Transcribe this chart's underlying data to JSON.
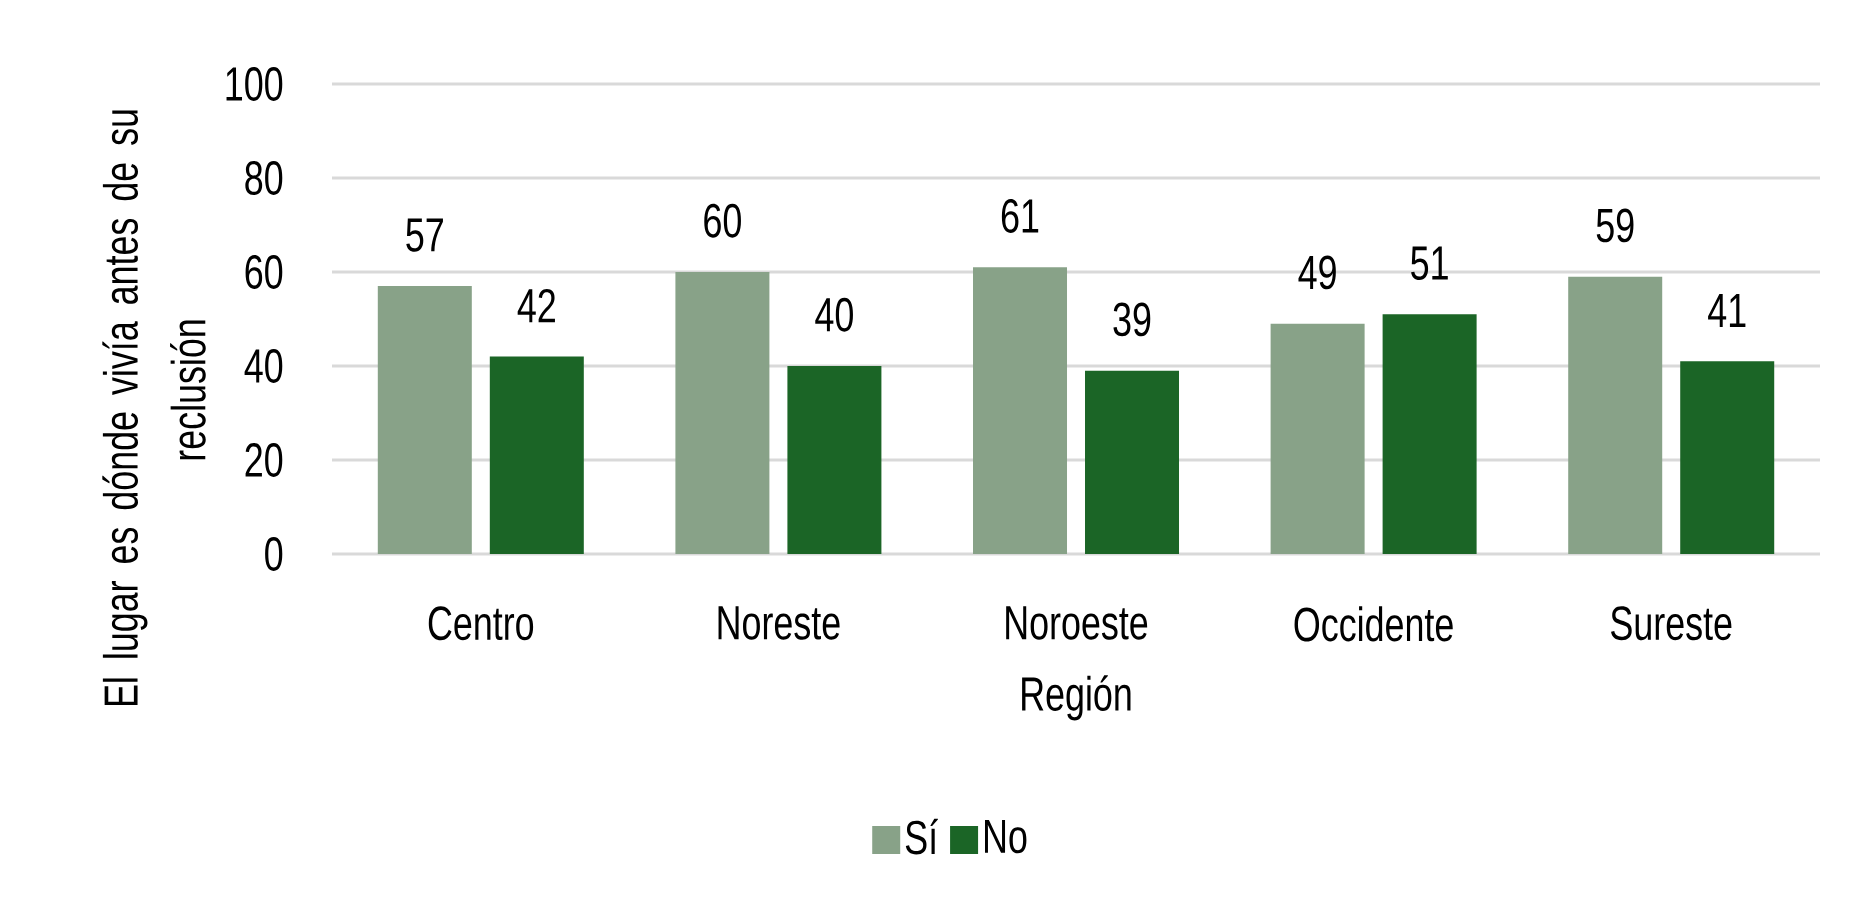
{
  "chart_data": {
    "type": "bar",
    "categories": [
      "Centro",
      "Noreste",
      "Noroeste",
      "Occidente",
      "Sureste"
    ],
    "series": [
      {
        "name": "Sí",
        "color": "#88a288",
        "values": [
          57,
          60,
          61,
          49,
          59
        ]
      },
      {
        "name": "No",
        "color": "#1b6526",
        "values": [
          42,
          40,
          39,
          51,
          41
        ]
      }
    ],
    "xlabel": "Región",
    "ylabel": "El lugar es dónde vivía antes de su reclusión",
    "ylim": [
      0,
      100
    ],
    "yticks": [
      0,
      20,
      40,
      60,
      80,
      100
    ],
    "grid": "y",
    "legend": "bottom",
    "data_labels": true
  }
}
